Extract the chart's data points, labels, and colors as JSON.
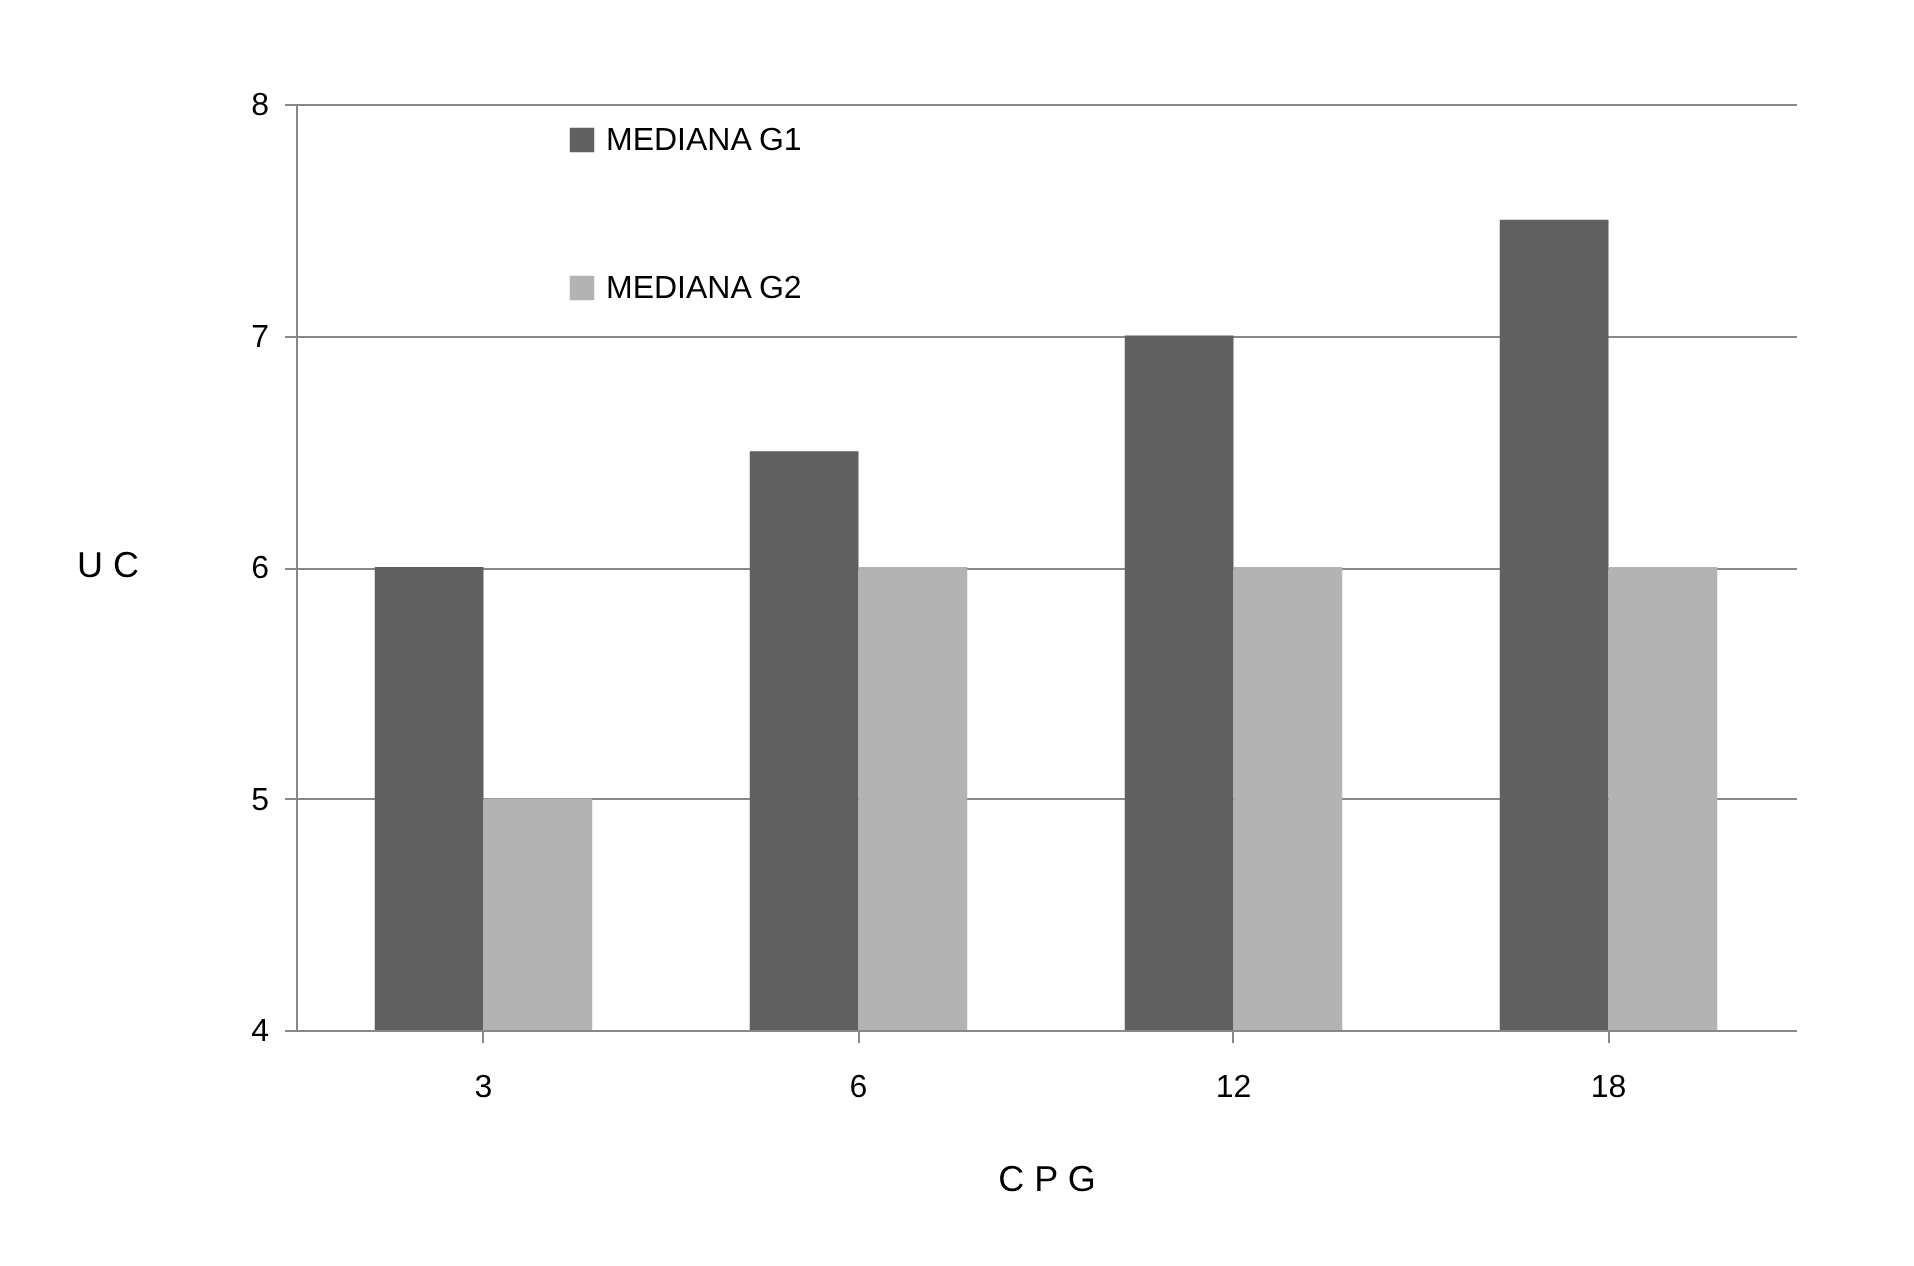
{
  "chart_data": {
    "type": "bar",
    "xlabel": "C P G",
    "ylabel": "U C",
    "categories": [
      "3",
      "6",
      "12",
      "18"
    ],
    "series": [
      {
        "name": "MEDIANA G1",
        "color": "#606060",
        "values": [
          6,
          6.5,
          7,
          7.5
        ]
      },
      {
        "name": "MEDIANA G2",
        "color": "#b3b3b3",
        "values": [
          5,
          6,
          6,
          6
        ]
      }
    ],
    "ylim": [
      4,
      8
    ],
    "yticks": [
      4,
      5,
      6,
      7,
      8
    ],
    "grid": "y",
    "legend": "top left"
  }
}
